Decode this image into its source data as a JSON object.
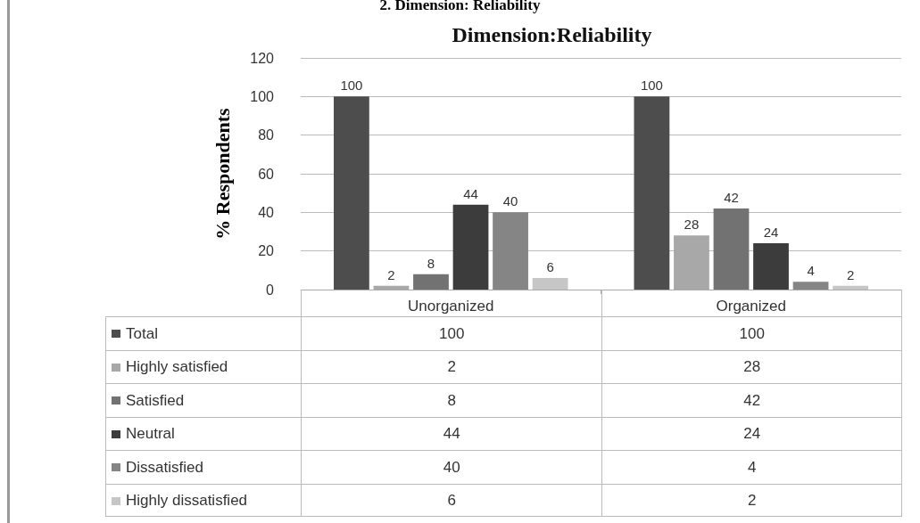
{
  "chart_data": {
    "type": "bar",
    "title": "Dimension:Reliability",
    "ylabel": "% Respondents",
    "annotations": [
      "2. Dimension: Reliability",
      "100",
      "100",
      "2",
      "28",
      "8",
      "42",
      "44",
      "24",
      "40",
      "4",
      "6",
      "2"
    ],
    "categories": [
      "Unorganized",
      "Organized"
    ],
    "series": [
      {
        "name": "Total",
        "color": "#4d4d4d",
        "values": [
          100,
          100
        ]
      },
      {
        "name": "Highly satisfied",
        "color": "#a8a8a8",
        "values": [
          2,
          28
        ]
      },
      {
        "name": "Satisfied",
        "color": "#727272",
        "values": [
          8,
          42
        ]
      },
      {
        "name": "Neutral",
        "color": "#3c3c3c",
        "values": [
          44,
          24
        ]
      },
      {
        "name": "Dissatisfied",
        "color": "#858585",
        "values": [
          40,
          4
        ]
      },
      {
        "name": "Highly dissatisfied",
        "color": "#c6c6c6",
        "values": [
          6,
          2
        ]
      }
    ],
    "ylim": [
      0,
      120
    ],
    "yticks": [
      0,
      20,
      40,
      60,
      80,
      100,
      120
    ],
    "grid": "y",
    "legend": "bottom left",
    "data_labels": true
  }
}
